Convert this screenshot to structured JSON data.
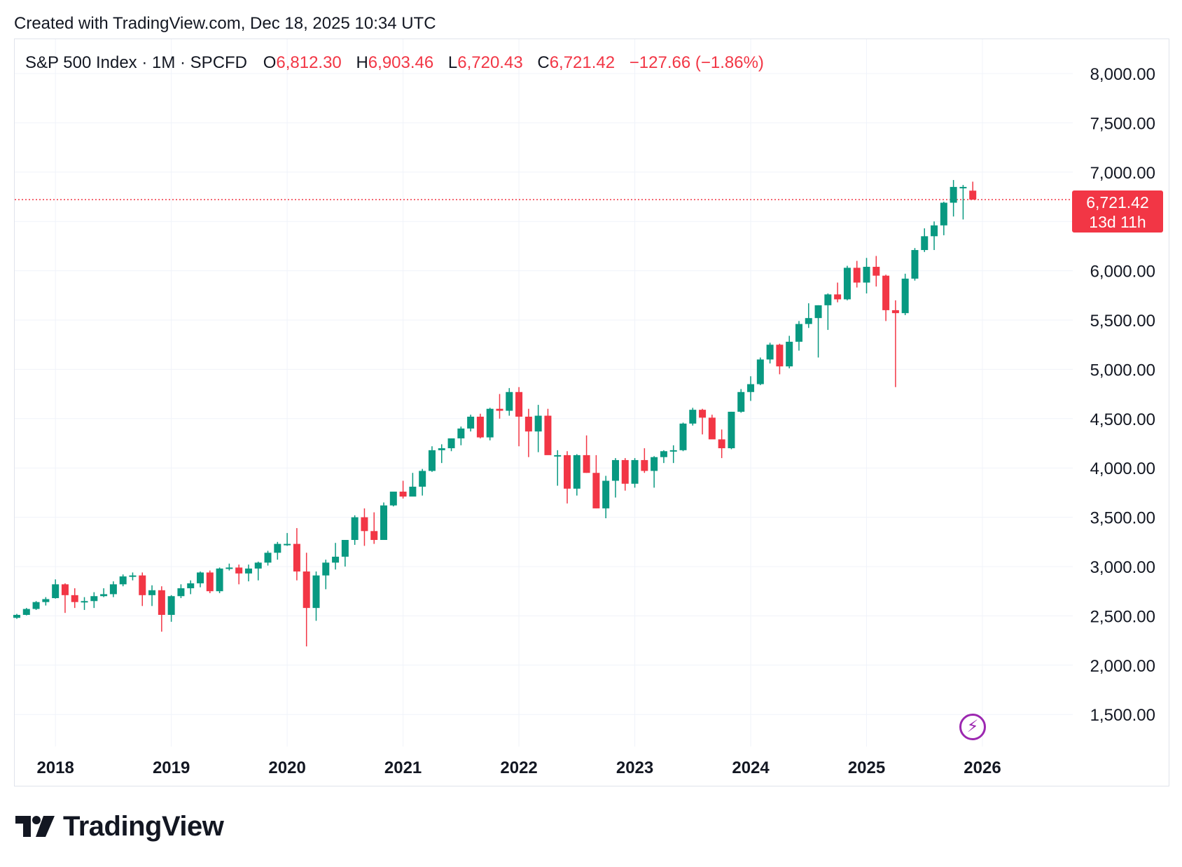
{
  "header": {
    "created_text": "Created with TradingView.com, Dec 18, 2025 10:34 UTC"
  },
  "legend": {
    "symbol": "S&P 500 Index · 1M · SPCFD",
    "o_label": "O",
    "o_value": "6,812.30",
    "h_label": "H",
    "h_value": "6,903.46",
    "l_label": "L",
    "l_value": "6,720.43",
    "c_label": "C",
    "c_value": "6,721.42",
    "change": "−127.66 (−1.86%)"
  },
  "price_badge": {
    "price": "6,721.42",
    "countdown": "13d 11h"
  },
  "colors": {
    "up": "#089981",
    "down": "#f23645",
    "grid": "#f0f3fa",
    "text": "#131722",
    "accent": "#9c27b0"
  },
  "icons": {
    "flash": "flash-icon",
    "logo": "tradingview-logo-icon"
  },
  "footer": {
    "brand": "TradingView"
  },
  "chart_data": {
    "type": "candlestick",
    "title": "S&P 500 Index · 1M · SPCFD",
    "interval": "1M",
    "y_axis_ticks": [
      "8,000.00",
      "7,500.00",
      "7,000.00",
      "6,500.00",
      "6,000.00",
      "5,500.00",
      "5,000.00",
      "4,500.00",
      "4,000.00",
      "3,500.00",
      "3,000.00",
      "2,500.00",
      "2,000.00",
      "1,500.00"
    ],
    "y_tick_values": [
      8000,
      7500,
      7000,
      6500,
      6000,
      5500,
      5000,
      4500,
      4000,
      3500,
      3000,
      2500,
      2000,
      1500
    ],
    "x_axis_ticks": [
      "2018",
      "2019",
      "2020",
      "2021",
      "2022",
      "2023",
      "2024",
      "2025",
      "2026"
    ],
    "ylim": [
      1200,
      8200
    ],
    "last_price": 6721.42,
    "start": "2017-09",
    "candles": [
      [
        2480,
        2520,
        2470,
        2510
      ],
      [
        2510,
        2580,
        2505,
        2570
      ],
      [
        2570,
        2650,
        2560,
        2640
      ],
      [
        2640,
        2690,
        2605,
        2670
      ],
      [
        2680,
        2870,
        2675,
        2820
      ],
      [
        2820,
        2830,
        2530,
        2710
      ],
      [
        2710,
        2780,
        2580,
        2640
      ],
      [
        2640,
        2690,
        2560,
        2650
      ],
      [
        2650,
        2740,
        2580,
        2700
      ],
      [
        2700,
        2780,
        2690,
        2720
      ],
      [
        2720,
        2850,
        2690,
        2820
      ],
      [
        2820,
        2920,
        2800,
        2900
      ],
      [
        2900,
        2940,
        2860,
        2910
      ],
      [
        2910,
        2940,
        2600,
        2710
      ],
      [
        2710,
        2810,
        2600,
        2760
      ],
      [
        2760,
        2800,
        2340,
        2510
      ],
      [
        2510,
        2710,
        2440,
        2700
      ],
      [
        2700,
        2820,
        2680,
        2780
      ],
      [
        2780,
        2860,
        2720,
        2830
      ],
      [
        2830,
        2950,
        2790,
        2940
      ],
      [
        2940,
        2960,
        2730,
        2750
      ],
      [
        2750,
        2990,
        2730,
        2980
      ],
      [
        2980,
        3030,
        2960,
        2990
      ],
      [
        2990,
        3020,
        2820,
        2930
      ],
      [
        2930,
        3020,
        2850,
        2980
      ],
      [
        2980,
        3050,
        2860,
        3040
      ],
      [
        3040,
        3160,
        3010,
        3140
      ],
      [
        3140,
        3250,
        3070,
        3230
      ],
      [
        3230,
        3340,
        3210,
        3230
      ],
      [
        3230,
        3390,
        2860,
        2950
      ],
      [
        2950,
        3140,
        2190,
        2580
      ],
      [
        2580,
        2950,
        2450,
        2910
      ],
      [
        2910,
        3070,
        2770,
        3040
      ],
      [
        3040,
        3240,
        2970,
        3100
      ],
      [
        3100,
        3250,
        3000,
        3270
      ],
      [
        3270,
        3520,
        3220,
        3500
      ],
      [
        3500,
        3590,
        3210,
        3360
      ],
      [
        3360,
        3550,
        3230,
        3270
      ],
      [
        3270,
        3650,
        3280,
        3620
      ],
      [
        3620,
        3760,
        3610,
        3760
      ],
      [
        3760,
        3870,
        3690,
        3710
      ],
      [
        3710,
        3950,
        3720,
        3810
      ],
      [
        3810,
        3990,
        3720,
        3970
      ],
      [
        3970,
        4220,
        3960,
        4180
      ],
      [
        4180,
        4240,
        4050,
        4200
      ],
      [
        4200,
        4300,
        4170,
        4300
      ],
      [
        4300,
        4420,
        4230,
        4400
      ],
      [
        4400,
        4540,
        4370,
        4520
      ],
      [
        4520,
        4550,
        4300,
        4310
      ],
      [
        4310,
        4610,
        4280,
        4600
      ],
      [
        4600,
        4750,
        4500,
        4580
      ],
      [
        4580,
        4810,
        4530,
        4770
      ],
      [
        4770,
        4820,
        4220,
        4520
      ],
      [
        4520,
        4600,
        4110,
        4370
      ],
      [
        4370,
        4640,
        4160,
        4530
      ],
      [
        4530,
        4600,
        4170,
        4130
      ],
      [
        4130,
        4180,
        3820,
        4130
      ],
      [
        4130,
        4170,
        3640,
        3790
      ],
      [
        3790,
        4140,
        3720,
        4130
      ],
      [
        4130,
        4330,
        3950,
        3950
      ],
      [
        3950,
        4130,
        3590,
        3590
      ],
      [
        3590,
        3920,
        3490,
        3870
      ],
      [
        3870,
        4100,
        3700,
        4080
      ],
      [
        4080,
        4100,
        3770,
        3840
      ],
      [
        3840,
        4100,
        3800,
        4080
      ],
      [
        4080,
        4200,
        3950,
        3970
      ],
      [
        3970,
        4120,
        3800,
        4110
      ],
      [
        4110,
        4180,
        4050,
        4170
      ],
      [
        4170,
        4230,
        4050,
        4180
      ],
      [
        4180,
        4460,
        4170,
        4450
      ],
      [
        4450,
        4610,
        4430,
        4590
      ],
      [
        4590,
        4600,
        4340,
        4510
      ],
      [
        4510,
        4540,
        4330,
        4290
      ],
      [
        4290,
        4390,
        4100,
        4200
      ],
      [
        4200,
        4570,
        4190,
        4570
      ],
      [
        4570,
        4800,
        4560,
        4770
      ],
      [
        4770,
        4930,
        4680,
        4850
      ],
      [
        4850,
        5120,
        4840,
        5100
      ],
      [
        5100,
        5270,
        5060,
        5250
      ],
      [
        5250,
        5260,
        4950,
        5030
      ],
      [
        5030,
        5340,
        5010,
        5280
      ],
      [
        5280,
        5490,
        5190,
        5460
      ],
      [
        5460,
        5670,
        5420,
        5520
      ],
      [
        5520,
        5650,
        5120,
        5650
      ],
      [
        5650,
        5770,
        5400,
        5760
      ],
      [
        5760,
        5880,
        5680,
        5710
      ],
      [
        5710,
        6050,
        5700,
        6030
      ],
      [
        6030,
        6100,
        5830,
        5880
      ],
      [
        5880,
        6130,
        5770,
        6040
      ],
      [
        6040,
        6150,
        5840,
        5950
      ],
      [
        5950,
        5960,
        5490,
        5600
      ],
      [
        5600,
        5700,
        4820,
        5570
      ],
      [
        5570,
        5970,
        5550,
        5920
      ],
      [
        5920,
        6230,
        5900,
        6210
      ],
      [
        6210,
        6430,
        6190,
        6350
      ],
      [
        6350,
        6500,
        6210,
        6460
      ],
      [
        6460,
        6700,
        6360,
        6690
      ],
      [
        6690,
        6920,
        6550,
        6850
      ],
      [
        6850,
        6870,
        6520,
        6850
      ],
      [
        6812.3,
        6903.46,
        6720.43,
        6721.42
      ]
    ]
  }
}
